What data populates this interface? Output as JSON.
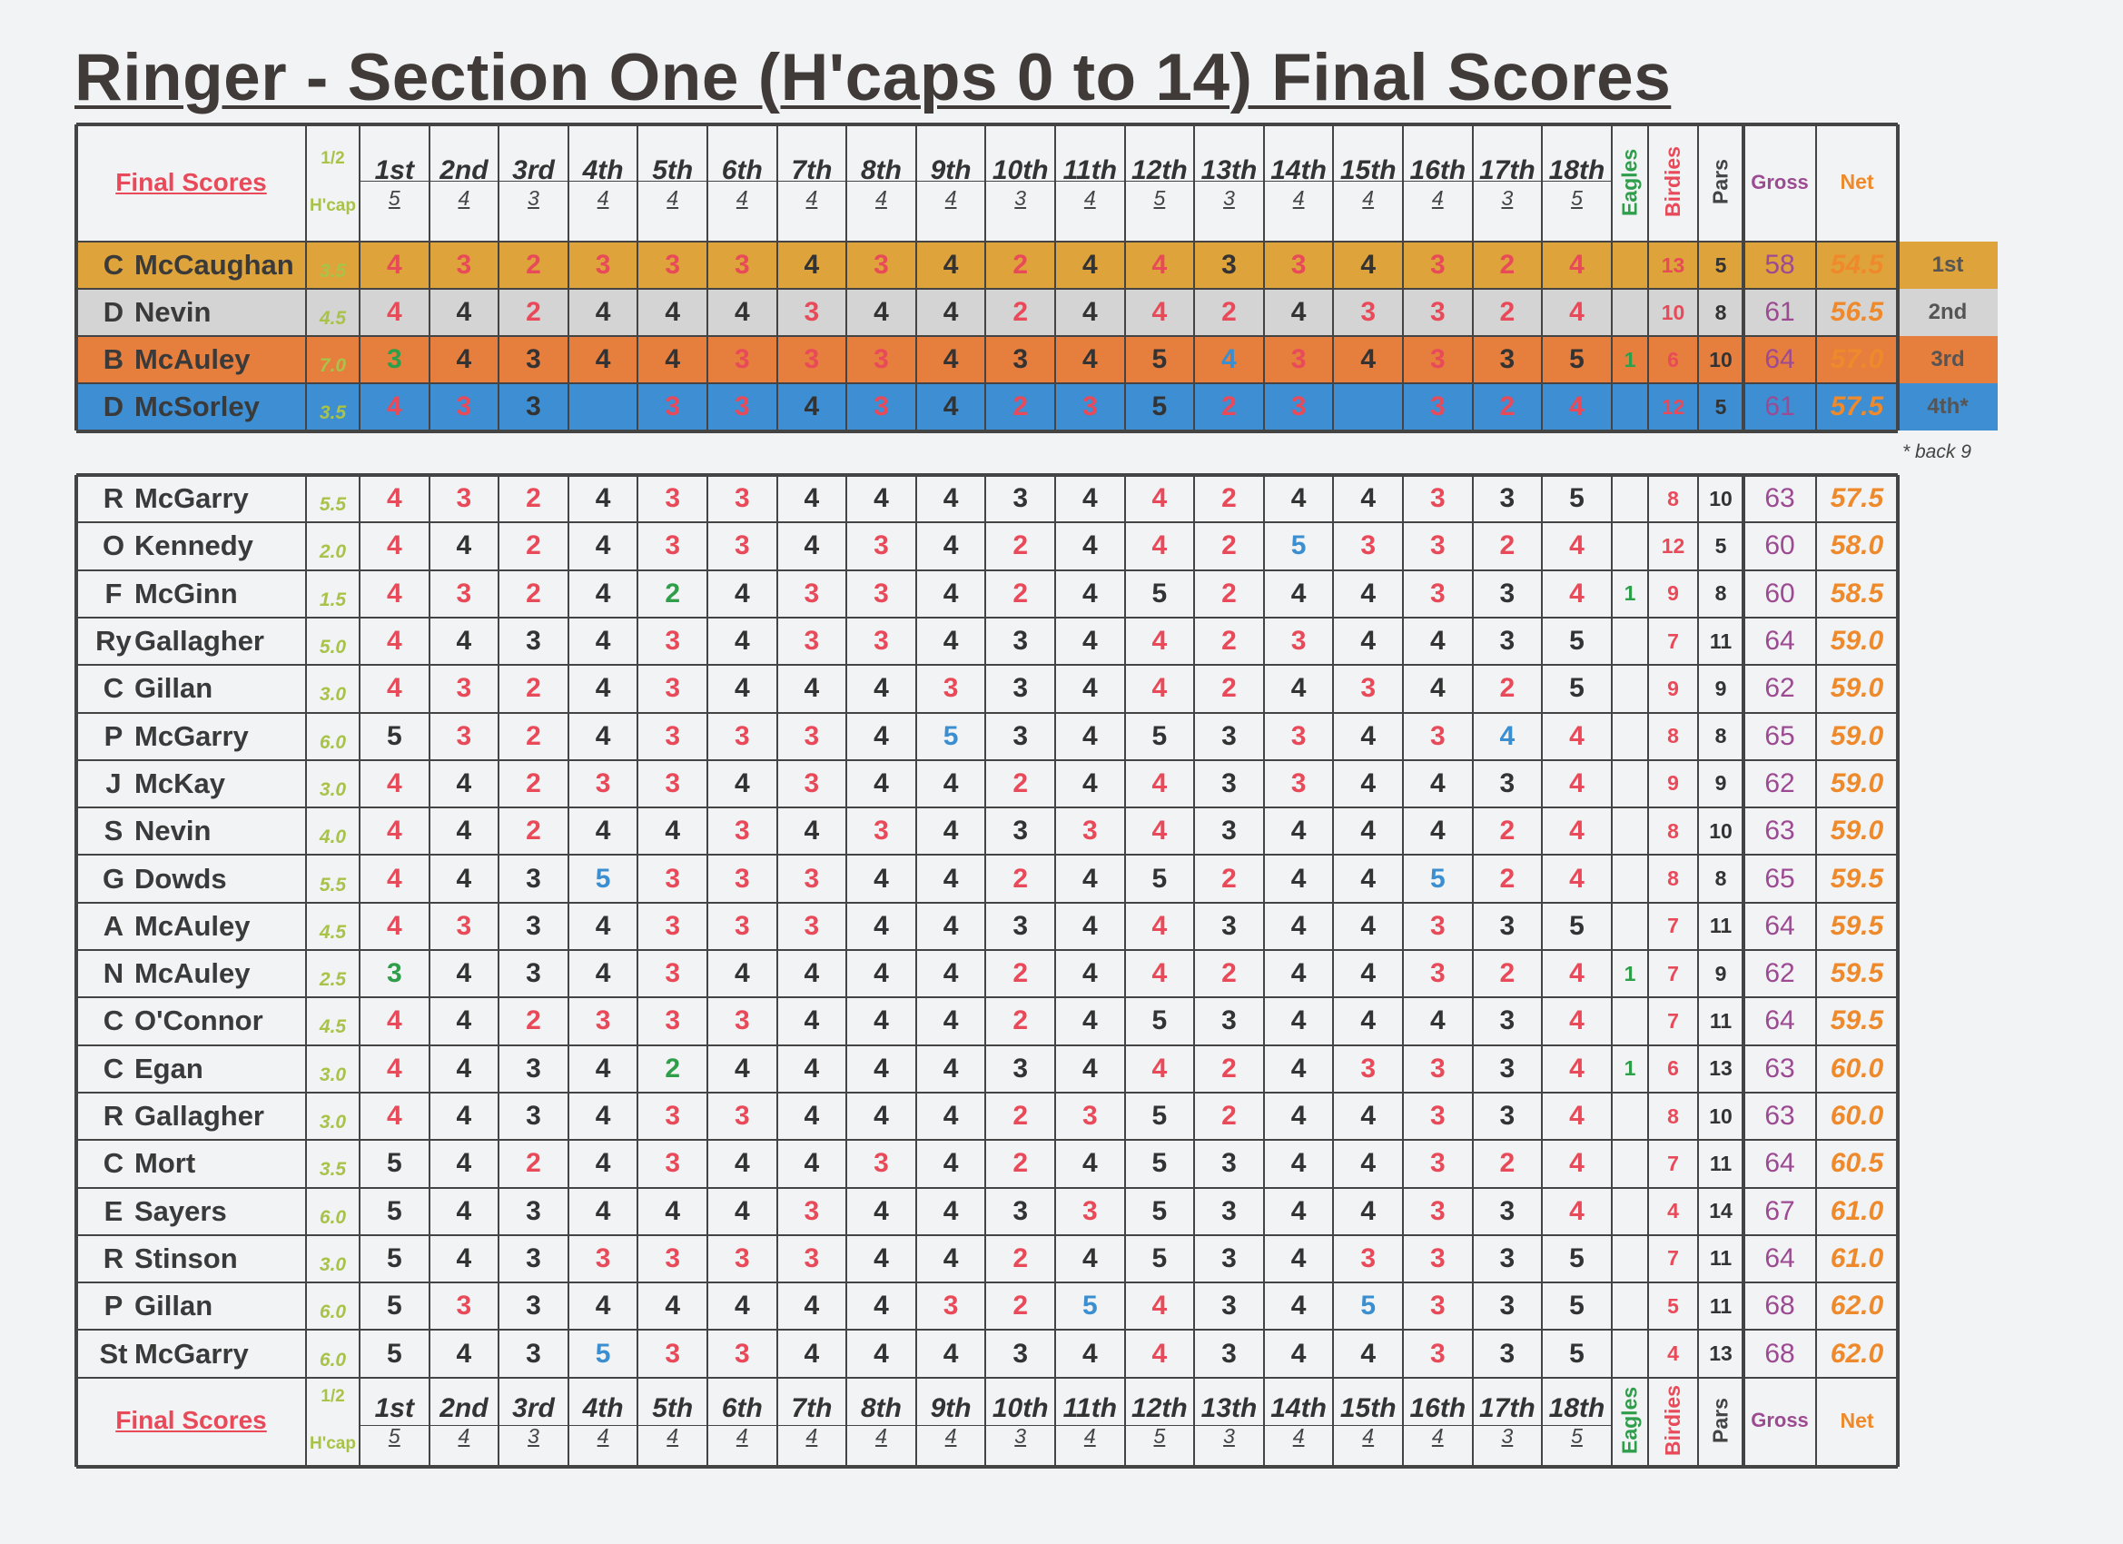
{
  "title": "Ringer - Section One (H'caps 0 to 14) Final Scores",
  "header": {
    "final_scores_label": "Final Scores",
    "half_label": "1/2",
    "hcap_label": "H'cap",
    "eagles_label": "Eagles",
    "birdies_label": "Birdies",
    "pars_label": "Pars",
    "gross_label": "Gross",
    "net_label": "Net"
  },
  "holes": [
    {
      "name": "1st",
      "par": "5"
    },
    {
      "name": "2nd",
      "par": "4"
    },
    {
      "name": "3rd",
      "par": "3"
    },
    {
      "name": "4th",
      "par": "4"
    },
    {
      "name": "5th",
      "par": "4"
    },
    {
      "name": "6th",
      "par": "4"
    },
    {
      "name": "7th",
      "par": "4"
    },
    {
      "name": "8th",
      "par": "4"
    },
    {
      "name": "9th",
      "par": "4"
    },
    {
      "name": "10th",
      "par": "3"
    },
    {
      "name": "11th",
      "par": "4"
    },
    {
      "name": "12th",
      "par": "5"
    },
    {
      "name": "13th",
      "par": "3"
    },
    {
      "name": "14th",
      "par": "4"
    },
    {
      "name": "15th",
      "par": "4"
    },
    {
      "name": "16th",
      "par": "4"
    },
    {
      "name": "17th",
      "par": "3"
    },
    {
      "name": "18th",
      "par": "5"
    }
  ],
  "colors": {
    "birdie": "#e84a5a",
    "par": "#333333",
    "bogey": "#3b8fd0",
    "eagle": "#2e9e4a",
    "first_row": "#dea33a",
    "second_row": "#d4d4d4",
    "third_row": "#e67e3e",
    "fourth_row": "#3d8ed2"
  },
  "podium": [
    {
      "initial": "C",
      "surname": "McCaughan",
      "hcap": "3.5",
      "scores": [
        "4",
        "3",
        "2",
        "3",
        "3",
        "3",
        "4",
        "3",
        "4",
        "2",
        "4",
        "4",
        "3",
        "3",
        "4",
        "3",
        "2",
        "4"
      ],
      "eagles": "",
      "birdies": "13",
      "pars": "5",
      "gross": "58",
      "net": "54.5",
      "position": "1st",
      "bg": "#dea33a"
    },
    {
      "initial": "D",
      "surname": "Nevin",
      "hcap": "4.5",
      "scores": [
        "4",
        "4",
        "2",
        "4",
        "4",
        "4",
        "3",
        "4",
        "4",
        "2",
        "4",
        "4",
        "2",
        "4",
        "3",
        "3",
        "2",
        "4"
      ],
      "eagles": "",
      "birdies": "10",
      "pars": "8",
      "gross": "61",
      "net": "56.5",
      "position": "2nd",
      "bg": "#d4d4d4"
    },
    {
      "initial": "B",
      "surname": "McAuley",
      "hcap": "7.0",
      "scores": [
        "3",
        "4",
        "3",
        "4",
        "4",
        "3",
        "3",
        "3",
        "4",
        "3",
        "4",
        "5",
        "4",
        "3",
        "4",
        "3",
        "3",
        "5"
      ],
      "eagles": "1",
      "birdies": "6",
      "pars": "10",
      "gross": "64",
      "net": "57.0",
      "position": "3rd",
      "bg": "#e67e3e"
    },
    {
      "initial": "D",
      "surname": "McSorley",
      "hcap": "3.5",
      "scores": [
        "4",
        "3",
        "3",
        "",
        "3",
        "3",
        "4",
        "3",
        "4",
        "2",
        "3",
        "5",
        "2",
        "3",
        "",
        "3",
        "2",
        "4"
      ],
      "eagles": "",
      "birdies": "12",
      "pars": "5",
      "gross": "61",
      "net": "57.5",
      "position": "4th*",
      "bg": "#3d8ed2"
    }
  ],
  "back9_note": "* back 9",
  "players": [
    {
      "initial": "R",
      "surname": "McGarry",
      "hcap": "5.5",
      "scores": [
        "4",
        "3",
        "2",
        "4",
        "3",
        "3",
        "4",
        "4",
        "4",
        "3",
        "4",
        "4",
        "2",
        "4",
        "4",
        "3",
        "3",
        "5"
      ],
      "eagles": "",
      "birdies": "8",
      "pars": "10",
      "gross": "63",
      "net": "57.5"
    },
    {
      "initial": "O",
      "surname": "Kennedy",
      "hcap": "2.0",
      "scores": [
        "4",
        "4",
        "2",
        "4",
        "3",
        "3",
        "4",
        "3",
        "4",
        "2",
        "4",
        "4",
        "2",
        "5",
        "3",
        "3",
        "2",
        "4"
      ],
      "eagles": "",
      "birdies": "12",
      "pars": "5",
      "gross": "60",
      "net": "58.0"
    },
    {
      "initial": "F",
      "surname": "McGinn",
      "hcap": "1.5",
      "scores": [
        "4",
        "3",
        "2",
        "4",
        "2",
        "4",
        "3",
        "3",
        "4",
        "2",
        "4",
        "5",
        "2",
        "4",
        "4",
        "3",
        "3",
        "4"
      ],
      "eagles": "1",
      "birdies": "9",
      "pars": "8",
      "gross": "60",
      "net": "58.5"
    },
    {
      "initial": "Ry",
      "surname": "Gallagher",
      "hcap": "5.0",
      "scores": [
        "4",
        "4",
        "3",
        "4",
        "3",
        "4",
        "3",
        "3",
        "4",
        "3",
        "4",
        "4",
        "2",
        "3",
        "4",
        "4",
        "3",
        "5"
      ],
      "eagles": "",
      "birdies": "7",
      "pars": "11",
      "gross": "64",
      "net": "59.0"
    },
    {
      "initial": "C",
      "surname": "Gillan",
      "hcap": "3.0",
      "scores": [
        "4",
        "3",
        "2",
        "4",
        "3",
        "4",
        "4",
        "4",
        "3",
        "3",
        "4",
        "4",
        "2",
        "4",
        "3",
        "4",
        "2",
        "5"
      ],
      "eagles": "",
      "birdies": "9",
      "pars": "9",
      "gross": "62",
      "net": "59.0"
    },
    {
      "initial": "P",
      "surname": "McGarry",
      "hcap": "6.0",
      "scores": [
        "5",
        "3",
        "2",
        "4",
        "3",
        "3",
        "3",
        "4",
        "5",
        "3",
        "4",
        "5",
        "3",
        "3",
        "4",
        "3",
        "4",
        "4"
      ],
      "eagles": "",
      "birdies": "8",
      "pars": "8",
      "gross": "65",
      "net": "59.0"
    },
    {
      "initial": "J",
      "surname": "McKay",
      "hcap": "3.0",
      "scores": [
        "4",
        "4",
        "2",
        "3",
        "3",
        "4",
        "3",
        "4",
        "4",
        "2",
        "4",
        "4",
        "3",
        "3",
        "4",
        "4",
        "3",
        "4"
      ],
      "eagles": "",
      "birdies": "9",
      "pars": "9",
      "gross": "62",
      "net": "59.0"
    },
    {
      "initial": "S",
      "surname": "Nevin",
      "hcap": "4.0",
      "scores": [
        "4",
        "4",
        "2",
        "4",
        "4",
        "3",
        "4",
        "3",
        "4",
        "3",
        "3",
        "4",
        "3",
        "4",
        "4",
        "4",
        "2",
        "4"
      ],
      "eagles": "",
      "birdies": "8",
      "pars": "10",
      "gross": "63",
      "net": "59.0"
    },
    {
      "initial": "G",
      "surname": "Dowds",
      "hcap": "5.5",
      "scores": [
        "4",
        "4",
        "3",
        "5",
        "3",
        "3",
        "3",
        "4",
        "4",
        "2",
        "4",
        "5",
        "2",
        "4",
        "4",
        "5",
        "2",
        "4"
      ],
      "eagles": "",
      "birdies": "8",
      "pars": "8",
      "gross": "65",
      "net": "59.5"
    },
    {
      "initial": "A",
      "surname": "McAuley",
      "hcap": "4.5",
      "scores": [
        "4",
        "3",
        "3",
        "4",
        "3",
        "3",
        "3",
        "4",
        "4",
        "3",
        "4",
        "4",
        "3",
        "4",
        "4",
        "3",
        "3",
        "5"
      ],
      "eagles": "",
      "birdies": "7",
      "pars": "11",
      "gross": "64",
      "net": "59.5"
    },
    {
      "initial": "N",
      "surname": "McAuley",
      "hcap": "2.5",
      "scores": [
        "3",
        "4",
        "3",
        "4",
        "3",
        "4",
        "4",
        "4",
        "4",
        "2",
        "4",
        "4",
        "2",
        "4",
        "4",
        "3",
        "2",
        "4"
      ],
      "eagles": "1",
      "birdies": "7",
      "pars": "9",
      "gross": "62",
      "net": "59.5"
    },
    {
      "initial": "C",
      "surname": "O'Connor",
      "hcap": "4.5",
      "scores": [
        "4",
        "4",
        "2",
        "3",
        "3",
        "3",
        "4",
        "4",
        "4",
        "2",
        "4",
        "5",
        "3",
        "4",
        "4",
        "4",
        "3",
        "4"
      ],
      "eagles": "",
      "birdies": "7",
      "pars": "11",
      "gross": "64",
      "net": "59.5"
    },
    {
      "initial": "C",
      "surname": "Egan",
      "hcap": "3.0",
      "scores": [
        "4",
        "4",
        "3",
        "4",
        "2",
        "4",
        "4",
        "4",
        "4",
        "3",
        "4",
        "4",
        "2",
        "4",
        "3",
        "3",
        "3",
        "4"
      ],
      "eagles": "1",
      "birdies": "6",
      "pars": "13",
      "gross": "63",
      "net": "60.0"
    },
    {
      "initial": "R",
      "surname": "Gallagher",
      "hcap": "3.0",
      "scores": [
        "4",
        "4",
        "3",
        "4",
        "3",
        "3",
        "4",
        "4",
        "4",
        "2",
        "3",
        "5",
        "2",
        "4",
        "4",
        "3",
        "3",
        "4"
      ],
      "eagles": "",
      "birdies": "8",
      "pars": "10",
      "gross": "63",
      "net": "60.0"
    },
    {
      "initial": "C",
      "surname": "Mort",
      "hcap": "3.5",
      "scores": [
        "5",
        "4",
        "2",
        "4",
        "3",
        "4",
        "4",
        "3",
        "4",
        "2",
        "4",
        "5",
        "3",
        "4",
        "4",
        "3",
        "2",
        "4"
      ],
      "eagles": "",
      "birdies": "7",
      "pars": "11",
      "gross": "64",
      "net": "60.5"
    },
    {
      "initial": "E",
      "surname": "Sayers",
      "hcap": "6.0",
      "scores": [
        "5",
        "4",
        "3",
        "4",
        "4",
        "4",
        "3",
        "4",
        "4",
        "3",
        "3",
        "5",
        "3",
        "4",
        "4",
        "3",
        "3",
        "4"
      ],
      "eagles": "",
      "birdies": "4",
      "pars": "14",
      "gross": "67",
      "net": "61.0"
    },
    {
      "initial": "R",
      "surname": "Stinson",
      "hcap": "3.0",
      "scores": [
        "5",
        "4",
        "3",
        "3",
        "3",
        "3",
        "3",
        "4",
        "4",
        "2",
        "4",
        "5",
        "3",
        "4",
        "3",
        "3",
        "3",
        "5"
      ],
      "eagles": "",
      "birdies": "7",
      "pars": "11",
      "gross": "64",
      "net": "61.0"
    },
    {
      "initial": "P",
      "surname": "Gillan",
      "hcap": "6.0",
      "scores": [
        "5",
        "3",
        "3",
        "4",
        "4",
        "4",
        "4",
        "4",
        "3",
        "2",
        "5",
        "4",
        "3",
        "4",
        "5",
        "3",
        "3",
        "5"
      ],
      "eagles": "",
      "birdies": "5",
      "pars": "11",
      "gross": "68",
      "net": "62.0"
    },
    {
      "initial": "St",
      "surname": "McGarry",
      "hcap": "6.0",
      "scores": [
        "5",
        "4",
        "3",
        "5",
        "3",
        "3",
        "4",
        "4",
        "4",
        "3",
        "4",
        "4",
        "3",
        "4",
        "4",
        "3",
        "3",
        "5"
      ],
      "eagles": "",
      "birdies": "4",
      "pars": "13",
      "gross": "68",
      "net": "62.0"
    }
  ]
}
